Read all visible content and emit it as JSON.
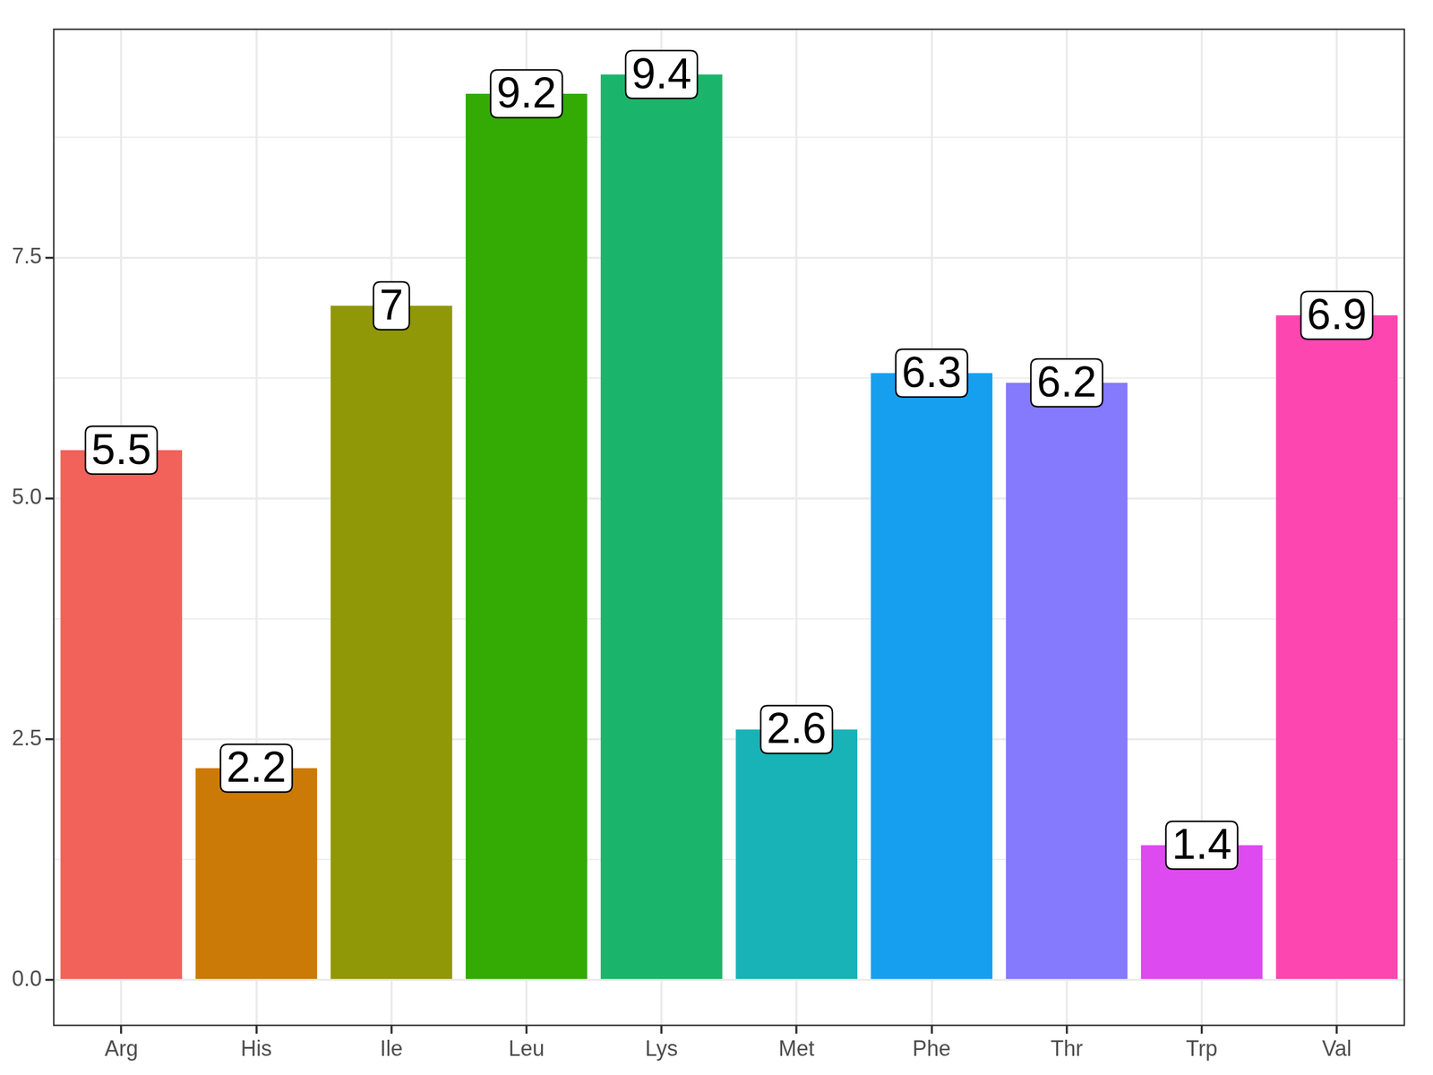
{
  "chart_data": {
    "type": "bar",
    "categories": [
      "Arg",
      "His",
      "Ile",
      "Leu",
      "Lys",
      "Met",
      "Phe",
      "Thr",
      "Trp",
      "Val"
    ],
    "values": [
      5.5,
      2.2,
      7,
      9.2,
      9.4,
      2.6,
      6.3,
      6.2,
      1.4,
      6.9
    ],
    "colors": [
      "#F2615A",
      "#CC7A07",
      "#919807",
      "#33AB04",
      "#1AB56A",
      "#17B3B6",
      "#179FEF",
      "#8579FE",
      "#DD4AEF",
      "#FD46AF"
    ],
    "ylim": [
      -0.47,
      9.87
    ],
    "yticks": [
      {
        "value": 0,
        "label": "0.0"
      },
      2.5,
      {
        "value": 5,
        "label": "5.0"
      },
      7.5
    ],
    "grid": true,
    "data_labels": true
  }
}
